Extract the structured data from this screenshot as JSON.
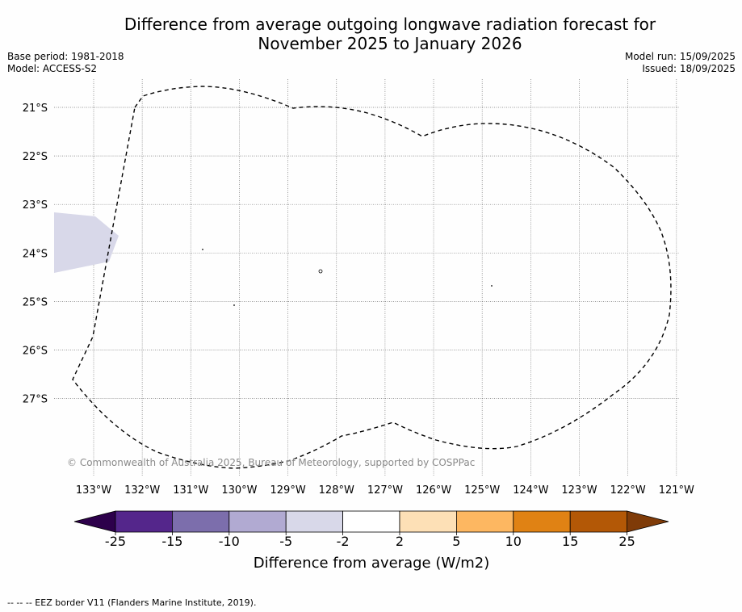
{
  "title": {
    "line1": "Difference from average outgoing longwave radiation forecast for",
    "line2": "November 2025 to January 2026"
  },
  "meta": {
    "base_period": "Base period: 1981-2018",
    "model": "Model: ACCESS-S2",
    "model_run": "Model run: 15/09/2025",
    "issued": "Issued: 18/09/2025"
  },
  "map": {
    "lat_labels": [
      "21°S",
      "22°S",
      "23°S",
      "24°S",
      "25°S",
      "26°S",
      "27°S"
    ],
    "lon_labels": [
      "133°W",
      "132°W",
      "131°W",
      "130°W",
      "129°W",
      "128°W",
      "127°W",
      "126°W",
      "125°W",
      "124°W",
      "123°W",
      "122°W",
      "121°W"
    ],
    "copyright": "© Commonwealth of Australia 2025, Bureau of Meteorology, supported by COSPPac",
    "anomaly_fill_color": "#d8d8e9",
    "border_color": "#000000"
  },
  "colorbar": {
    "tick_labels": [
      "-25",
      "-15",
      "-10",
      "-5",
      "-2",
      "2",
      "5",
      "10",
      "15",
      "25"
    ],
    "colors": [
      "#54268b",
      "#7c6eac",
      "#b1aad2",
      "#d8d8e9",
      "#ffffff",
      "#fde0b6",
      "#fdb761",
      "#e08214",
      "#b35806"
    ],
    "under_color": "#2d004b",
    "over_color": "#7f3b08",
    "label": "Difference from average (W/m2)"
  },
  "footer": {
    "legend": "--  --  -- EEZ border V11 (Flanders Marine Institute, 2019)."
  }
}
